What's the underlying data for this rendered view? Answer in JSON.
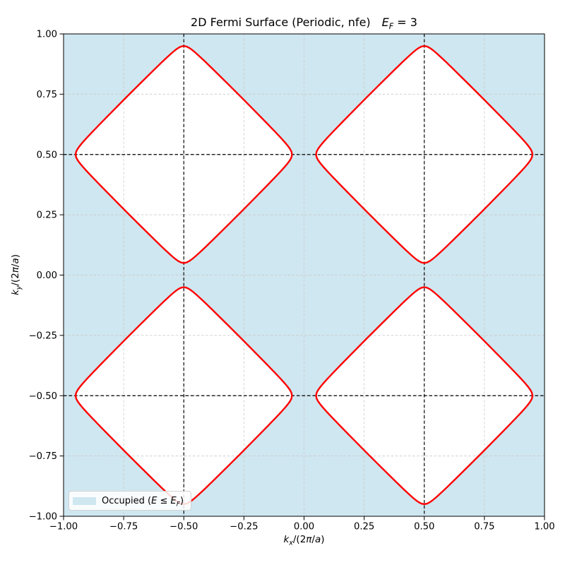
{
  "figure": {
    "title_prefix": "2D Fermi Surface (Periodic, nfe)",
    "title_math_var": "E",
    "title_math_sub": "F",
    "title_math_eq": " = 3"
  },
  "axes": {
    "xlabel": {
      "var": "k",
      "sub": "x",
      "mid": "/(2",
      "pi": "π",
      "slash": "/",
      "a": "a",
      "close": ")"
    },
    "ylabel": {
      "var": "k",
      "sub": "y",
      "mid": "/(2",
      "pi": "π",
      "slash": "/",
      "a": "a",
      "close": ")"
    },
    "x_tick_labels": [
      "−1.00",
      "−0.75",
      "−0.50",
      "−0.25",
      "0.00",
      "0.25",
      "0.50",
      "0.75",
      "1.00"
    ],
    "y_tick_labels": [
      "1.00",
      "0.75",
      "0.50",
      "0.25",
      "0.00",
      "−0.25",
      "−0.50",
      "−0.75",
      "−1.00"
    ],
    "x_tick_values": [
      -1,
      -0.75,
      -0.5,
      -0.25,
      0,
      0.25,
      0.5,
      0.75,
      1
    ],
    "y_tick_values": [
      1,
      0.75,
      0.5,
      0.25,
      0,
      -0.25,
      -0.5,
      -0.75,
      -1
    ]
  },
  "legend": {
    "pre": "Occupied (",
    "e1": "E",
    "leq": " ≤ ",
    "e2": "E",
    "e2sub": "F",
    "post": ")",
    "swatch_color": "#cfe7f0"
  },
  "colors": {
    "occupied": "#cfe7f0",
    "contour": "#fe0000",
    "grid": "#c8c8c8",
    "zone_boundary": "#000000",
    "spine": "#000000",
    "tick_text": "#000000"
  },
  "chart_data": {
    "type": "contour",
    "title": "2D Fermi Surface (Periodic, nfe), E_F = 3",
    "model": "nfe",
    "fermi_energy": 3,
    "xlabel": "k_x/(2π/a)",
    "ylabel": "k_y/(2π/a)",
    "xlim": [
      -1,
      1
    ],
    "ylim": [
      -1,
      1
    ],
    "tick_step": 0.25,
    "grid": true,
    "legend_position": "lower left",
    "occupied_region": "everywhere except four star-shaped pockets",
    "unoccupied_pocket_centers": [
      [
        -0.5,
        0.5
      ],
      [
        0.5,
        0.5
      ],
      [
        -0.5,
        -0.5
      ],
      [
        0.5,
        -0.5
      ]
    ],
    "pocket_shape": {
      "form": "four-fold symmetric; right side: u = L - sqrt(t^2 + e^2), t in [-T, T], T = (L^2 - e^2) / (2L)",
      "L": 0.478,
      "e": 0.028,
      "tip_extent_from_center": 0.45,
      "diagonal_waist_from_center": 0.337,
      "neck_half_width_at_zone_boundary": 0.05
    },
    "zone_boundary_dashed_lines": {
      "x_values": [
        -0.5,
        0.5
      ],
      "y_values": [
        -0.5,
        0.5
      ]
    }
  }
}
